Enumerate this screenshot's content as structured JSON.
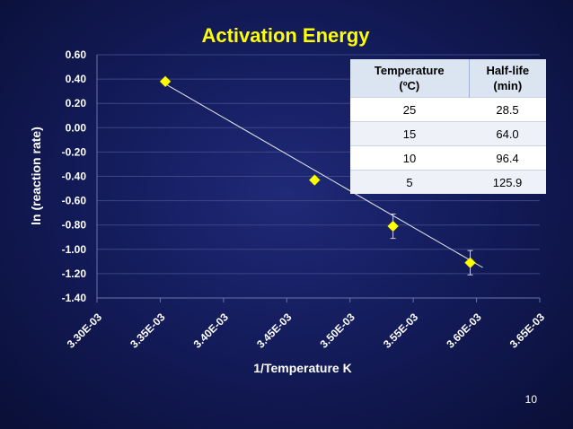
{
  "chart_data": {
    "type": "scatter",
    "title": "Activation Energy",
    "xlabel": "1/Temperature K",
    "ylabel": "ln (reaction rate)",
    "xlim": [
      0.0033,
      0.00365
    ],
    "ylim": [
      -1.4,
      0.6
    ],
    "x_ticks": [
      0.0033,
      0.00335,
      0.0034,
      0.00345,
      0.0035,
      0.00355,
      0.0036,
      0.00365
    ],
    "x_tick_labels": [
      "3.30E-03",
      "3.35E-03",
      "3.40E-03",
      "3.45E-03",
      "3.50E-03",
      "3.55E-03",
      "3.60E-03",
      "3.65E-03"
    ],
    "y_ticks": [
      0.6,
      0.4,
      0.2,
      0.0,
      -0.2,
      -0.4,
      -0.6,
      -0.8,
      -1.0,
      -1.2,
      -1.4
    ],
    "y_tick_labels": [
      "0.60",
      "0.40",
      "0.20",
      "0.00",
      "-0.20",
      "-0.40",
      "-0.60",
      "-0.80",
      "-1.00",
      "-1.20",
      "-1.40"
    ],
    "grid": true,
    "marker_color": "#ffff00",
    "trendline": {
      "from": [
        0.003354,
        0.36
      ],
      "to": [
        0.003605,
        -1.15
      ]
    },
    "series": [
      {
        "points": [
          {
            "x": 0.003354,
            "y": 0.38,
            "err": 0
          },
          {
            "x": 0.003472,
            "y": -0.43,
            "err": 0
          },
          {
            "x": 0.003534,
            "y": -0.81,
            "err": 0.1
          },
          {
            "x": 0.003595,
            "y": -1.11,
            "err": 0.1
          }
        ]
      }
    ]
  },
  "table": {
    "headers": [
      [
        "Temperature",
        "(ºC)"
      ],
      [
        "Half-life",
        "(min)"
      ]
    ],
    "rows": [
      [
        "25",
        "28.5"
      ],
      [
        "15",
        "64.0"
      ],
      [
        "10",
        "96.4"
      ],
      [
        "5",
        "125.9"
      ]
    ]
  },
  "slide_number": "10"
}
